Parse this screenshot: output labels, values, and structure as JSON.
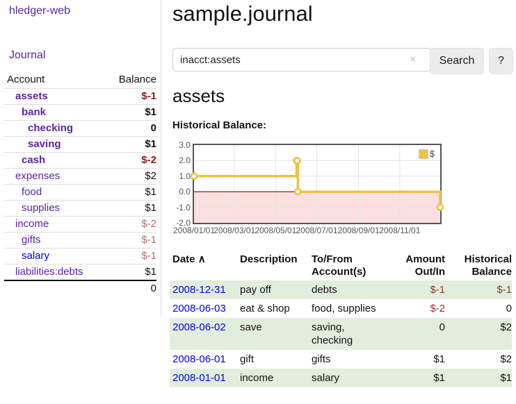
{
  "colors": {
    "link_purple": "#5e23a5",
    "link_blue": "#0000ee",
    "negative_bold": "#8b1a1a",
    "negative_soft": "#b36b6b",
    "negative_table": "#9c2f2f",
    "row_green": "#e2eedd",
    "chart_line_yellow": "#edc240",
    "chart_border": "#545454",
    "chart_grid": "#e4e4e4",
    "chart_negative_region": "#fcdfdf",
    "chart_zero_line": "#8b0000",
    "button_bg": "#ececec"
  },
  "app": {
    "title": "hledger-web",
    "nav_journal": "Journal"
  },
  "sidebar": {
    "headers": {
      "account": "Account",
      "balance": "Balance"
    },
    "accounts": [
      {
        "name": "assets",
        "level": 1,
        "bold": true,
        "blue": false,
        "balance": "$-1",
        "bclass": "neg-bold"
      },
      {
        "name": "bank",
        "level": 2,
        "bold": true,
        "blue": false,
        "balance": "$1",
        "bclass": "pos-bold"
      },
      {
        "name": "checking",
        "level": 3,
        "bold": true,
        "blue": false,
        "balance": "0",
        "bclass": "pos-bold"
      },
      {
        "name": "saving",
        "level": 3,
        "bold": true,
        "blue": false,
        "balance": "$1",
        "bclass": "pos-bold"
      },
      {
        "name": "cash",
        "level": 2,
        "bold": true,
        "blue": false,
        "balance": "$-2",
        "bclass": "neg-bold"
      },
      {
        "name": "expenses",
        "level": 1,
        "bold": false,
        "blue": false,
        "balance": "$2",
        "bclass": "pos"
      },
      {
        "name": "food",
        "level": 2,
        "bold": false,
        "blue": false,
        "balance": "$1",
        "bclass": "pos"
      },
      {
        "name": "supplies",
        "level": 2,
        "bold": false,
        "blue": false,
        "balance": "$1",
        "bclass": "pos"
      },
      {
        "name": "income",
        "level": 1,
        "bold": false,
        "blue": false,
        "balance": "$-2",
        "bclass": "neg"
      },
      {
        "name": "gifts",
        "level": 2,
        "bold": false,
        "blue": false,
        "balance": "$-1",
        "bclass": "neg"
      },
      {
        "name": "salary",
        "level": 2,
        "bold": false,
        "blue": true,
        "balance": "$-1",
        "bclass": "neg"
      },
      {
        "name": "liabilities:debts",
        "level": 1,
        "bold": false,
        "blue": false,
        "balance": "$1",
        "bclass": "pos"
      }
    ],
    "total": "0"
  },
  "main": {
    "title": "sample.journal",
    "search": {
      "value": "inacct:assets",
      "clear_icon": "×",
      "search_label": "Search",
      "help_label": "?"
    },
    "account_title": "assets",
    "chart_title": "Historical Balance:"
  },
  "chart_data": {
    "type": "line",
    "title": "Historical Balance",
    "legend": [
      "$"
    ],
    "legend_position": "top-right",
    "step": true,
    "grid": true,
    "ylim": [
      -2.0,
      3.0
    ],
    "yticks": [
      "3.0",
      "2.0",
      "1.0",
      "0.0",
      "-1.0",
      "-2.0"
    ],
    "ytick_values": [
      3,
      2,
      1,
      0,
      -1,
      -2
    ],
    "xticks": [
      {
        "label": "2008/01/01",
        "day": 0
      },
      {
        "label": "2008/03/01",
        "day": 60
      },
      {
        "label": "2008/05/01",
        "day": 121
      },
      {
        "label": "2008/07/01",
        "day": 182
      },
      {
        "label": "2008/09/01",
        "day": 244
      },
      {
        "label": "2008/11/01",
        "day": 305
      }
    ],
    "x_range_days": [
      0,
      365
    ],
    "series": [
      {
        "name": "$",
        "points": [
          {
            "date": "2008-01-01",
            "day": 0,
            "value": 1
          },
          {
            "date": "2008-06-01",
            "day": 152,
            "value": 2
          },
          {
            "date": "2008-06-02",
            "day": 153,
            "value": 2
          },
          {
            "date": "2008-06-03",
            "day": 154,
            "value": 0
          },
          {
            "date": "2008-12-31",
            "day": 365,
            "value": -1
          }
        ]
      }
    ],
    "negative_region_shaded": true
  },
  "transactions": {
    "headers": {
      "date": "Date",
      "sort_icon": "∧",
      "description": "Description",
      "accounts": "To/From Account(s)",
      "amount": "Amount Out/In",
      "balance": "Historical Balance"
    },
    "rows": [
      {
        "date": "2008-12-31",
        "description": "pay off",
        "accounts": "debts",
        "amount": "$-1",
        "amount_neg": true,
        "balance": "$-1",
        "balance_neg": true,
        "green": true
      },
      {
        "date": "2008-06-03",
        "description": "eat & shop",
        "accounts": "food, supplies",
        "amount": "$-2",
        "amount_neg": true,
        "balance": "0",
        "balance_neg": false,
        "green": false
      },
      {
        "date": "2008-06-02",
        "description": "save",
        "accounts": "saving, checking",
        "amount": "0",
        "amount_neg": false,
        "balance": "$2",
        "balance_neg": false,
        "green": true
      },
      {
        "date": "2008-06-01",
        "description": "gift",
        "accounts": "gifts",
        "amount": "$1",
        "amount_neg": false,
        "balance": "$2",
        "balance_neg": false,
        "green": false
      },
      {
        "date": "2008-01-01",
        "description": "income",
        "accounts": "salary",
        "amount": "$1",
        "amount_neg": false,
        "balance": "$1",
        "balance_neg": false,
        "green": true
      }
    ]
  }
}
